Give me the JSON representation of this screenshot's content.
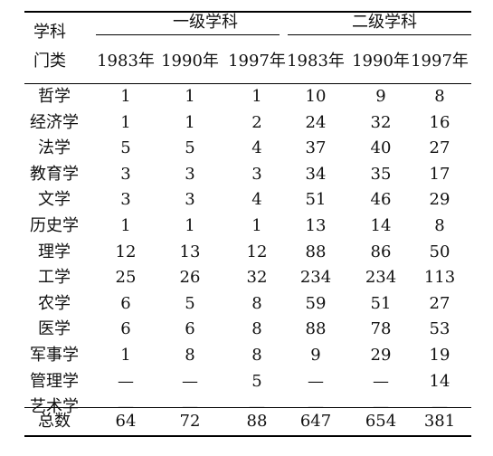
{
  "header": {
    "corner": [
      "学科",
      "门类"
    ],
    "groups": [
      "一级学科",
      "二级学科"
    ],
    "years": [
      "1983年",
      "1990年",
      "1997年",
      "1983年",
      "1990年",
      "1997年"
    ]
  },
  "rows": [
    {
      "name": "哲学",
      "values": [
        "1",
        "1",
        "1",
        "10",
        "9",
        "8"
      ]
    },
    {
      "name": "经济学",
      "values": [
        "1",
        "1",
        "2",
        "24",
        "32",
        "16"
      ]
    },
    {
      "name": "法学",
      "values": [
        "5",
        "5",
        "4",
        "37",
        "40",
        "27"
      ]
    },
    {
      "name": "教育学",
      "values": [
        "3",
        "3",
        "3",
        "34",
        "35",
        "17"
      ]
    },
    {
      "name": "文学",
      "values": [
        "3",
        "3",
        "4",
        "51",
        "46",
        "29"
      ]
    },
    {
      "name": "历史学",
      "values": [
        "1",
        "1",
        "1",
        "13",
        "14",
        "8"
      ]
    },
    {
      "name": "理学",
      "values": [
        "12",
        "13",
        "12",
        "88",
        "86",
        "50"
      ]
    },
    {
      "name": "工学",
      "values": [
        "25",
        "26",
        "32",
        "234",
        "234",
        "113"
      ]
    },
    {
      "name": "农学",
      "values": [
        "6",
        "5",
        "8",
        "59",
        "51",
        "27"
      ]
    },
    {
      "name": "医学",
      "values": [
        "6",
        "6",
        "8",
        "88",
        "78",
        "53"
      ]
    },
    {
      "name": "军事学",
      "values": [
        "1",
        "8",
        "8",
        "9",
        "29",
        "19"
      ]
    },
    {
      "name": "管理学",
      "values": [
        "—",
        "—",
        "5",
        "—",
        "—",
        "14"
      ]
    },
    {
      "name": "艺术学",
      "values": [
        "—",
        "—",
        "—",
        "—",
        "—",
        "—"
      ]
    }
  ],
  "total": {
    "name": "总数",
    "values": [
      "64",
      "72",
      "88",
      "647",
      "654",
      "381"
    ]
  }
}
